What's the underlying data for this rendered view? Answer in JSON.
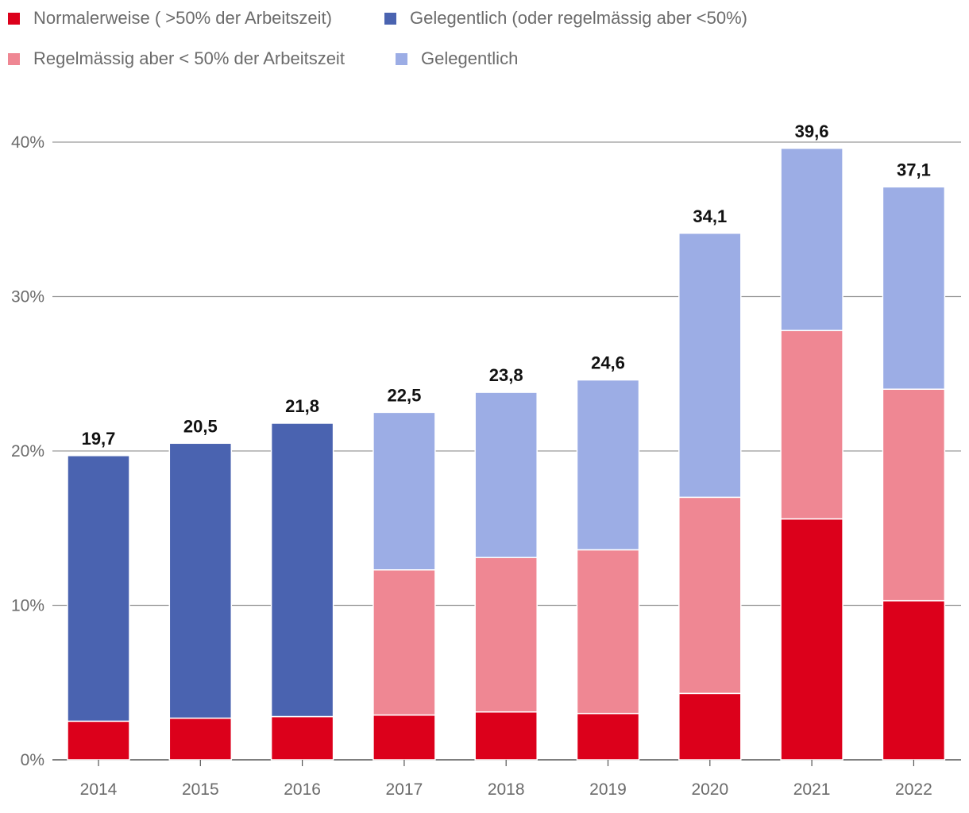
{
  "chart_data": {
    "type": "bar",
    "stacked": true,
    "categories": [
      "2014",
      "2015",
      "2016",
      "2017",
      "2018",
      "2019",
      "2020",
      "2021",
      "2022"
    ],
    "series": [
      {
        "name": "Normalerweise ( >50% der Arbeitszeit)",
        "color": "#dc001b",
        "values": [
          2.5,
          2.7,
          2.8,
          2.9,
          3.1,
          3.0,
          4.3,
          15.6,
          10.3
        ]
      },
      {
        "name": "Gelegentlich (oder regelmässig aber <50%)",
        "color": "#4a63b0",
        "values": [
          17.2,
          17.8,
          19.0,
          null,
          null,
          null,
          null,
          null,
          null
        ]
      },
      {
        "name": "Regelmässig aber < 50% der Arbeitszeit",
        "color": "#ef8793",
        "values": [
          null,
          null,
          null,
          9.4,
          10.0,
          10.6,
          12.7,
          12.2,
          13.7
        ]
      },
      {
        "name": "Gelegentlich",
        "color": "#9cade5",
        "values": [
          null,
          null,
          null,
          10.2,
          10.7,
          11.0,
          17.1,
          11.8,
          13.1
        ]
      }
    ],
    "totals": [
      "19,7",
      "20,5",
      "21,8",
      "22,5",
      "23,8",
      "24,6",
      "34,1",
      "39,6",
      "37,1"
    ],
    "ylim": [
      0,
      40
    ],
    "yticks": [
      0,
      10,
      20,
      30,
      40
    ],
    "ytick_labels": [
      "0%",
      "10%",
      "20%",
      "30%",
      "40%"
    ],
    "grid": true,
    "legend_position": "top-left",
    "title": "",
    "xlabel": "",
    "ylabel": ""
  }
}
